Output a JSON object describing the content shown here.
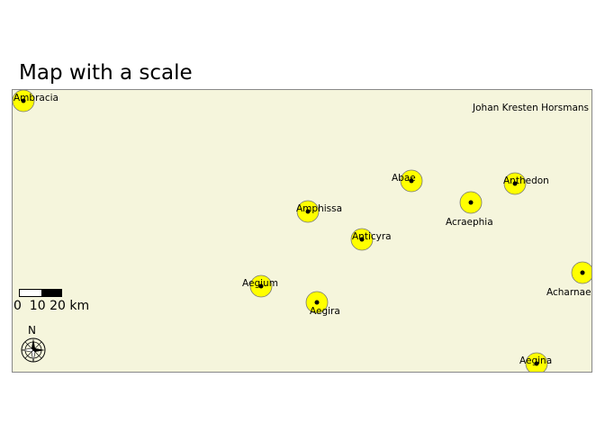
{
  "title": "Map with a scale",
  "credit": "Johan Kresten Horsmans",
  "colors": {
    "land": "#f5f5dc",
    "marker_fill": "#ffff00",
    "marker_edge": "#777777",
    "dot": "#000000"
  },
  "scale_bar": {
    "labels": "0  10 20 km"
  },
  "north_arrow": {
    "label": "N",
    "icon": "compass-rose-icon"
  },
  "places": [
    {
      "name": "Ambracia"
    },
    {
      "name": "Abae"
    },
    {
      "name": "Anthedon"
    },
    {
      "name": "Acraephia"
    },
    {
      "name": "Amphissa"
    },
    {
      "name": "Anticyra"
    },
    {
      "name": "Aegium"
    },
    {
      "name": "Aegira"
    },
    {
      "name": "Acharnae"
    },
    {
      "name": "Aegina"
    }
  ]
}
